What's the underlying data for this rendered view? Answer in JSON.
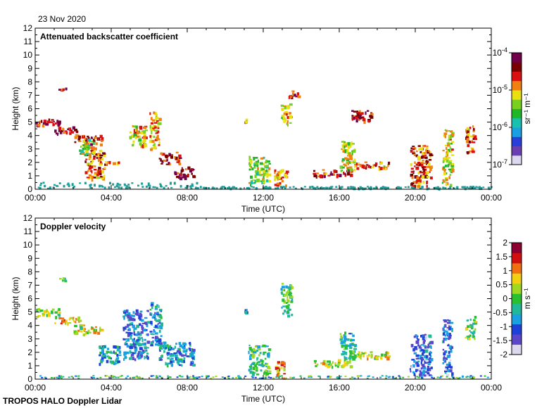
{
  "header": {
    "date": "23 Nov 2020"
  },
  "footer": {
    "instrument": "TROPOS HALO Doppler Lidar"
  },
  "colors": {
    "colormap": [
      "#ddd8ee",
      "#6a3fb0",
      "#2a3fd8",
      "#1a9fe0",
      "#18c0b0",
      "#20b828",
      "#7ad020",
      "#e8e010",
      "#f08010",
      "#d81010",
      "#780000",
      "#70004a"
    ],
    "ground": "#1e9e9a",
    "velocity": [
      "#ddd8ee",
      "#5a46c8",
      "#1e40d8",
      "#1aa0e0",
      "#20b898",
      "#28c030",
      "#a0d820",
      "#f0d010",
      "#f07010",
      "#d01010",
      "#8a0030"
    ]
  },
  "chart_data": [
    {
      "type": "heatmap",
      "title": "Attenuated backscatter coefficient",
      "xlabel": "Time (UTC)",
      "ylabel": "Height (km)",
      "xlim": [
        0,
        24
      ],
      "ylim": [
        0,
        12
      ],
      "xticks": [
        0,
        4,
        8,
        12,
        16,
        20,
        24
      ],
      "xtick_labels": [
        "00:00",
        "04:00",
        "08:00",
        "12:00",
        "16:00",
        "20:00",
        "00:00"
      ],
      "yticks": [
        0,
        1,
        2,
        3,
        4,
        5,
        6,
        7,
        8,
        9,
        10,
        11,
        12
      ],
      "colorbar": {
        "label": "sr⁻¹ m⁻¹",
        "scale": "log",
        "range": [
          1e-07,
          0.0001
        ],
        "tick_values": [
          1e-07,
          1e-06,
          1e-05,
          0.0001
        ],
        "tick_bases": [
          "10",
          "10",
          "10",
          "10"
        ],
        "tick_exponents": [
          "-7",
          "-6",
          "-5",
          "-4"
        ]
      },
      "features": [
        {
          "t0": 0.0,
          "t1": 1.3,
          "h0": 4.7,
          "h1": 5.3,
          "v": 0.92
        },
        {
          "t0": 1.0,
          "t1": 2.3,
          "h0": 4.2,
          "h1": 4.7,
          "v": 0.9
        },
        {
          "t0": 2.0,
          "t1": 3.5,
          "h0": 3.4,
          "h1": 4.1,
          "v": 0.85
        },
        {
          "t0": 3.3,
          "t1": 4.4,
          "h0": 1.9,
          "h1": 2.2,
          "v": 0.8
        },
        {
          "t0": 2.6,
          "t1": 3.6,
          "h0": 0.8,
          "h1": 3.2,
          "v": 0.75
        },
        {
          "t0": 4.9,
          "t1": 5.8,
          "h0": 3.2,
          "h1": 4.8,
          "v": 0.65
        },
        {
          "t0": 6.0,
          "t1": 6.5,
          "h0": 3.0,
          "h1": 5.8,
          "v": 0.7
        },
        {
          "t0": 6.5,
          "t1": 7.6,
          "h0": 1.9,
          "h1": 2.8,
          "v": 0.85
        },
        {
          "t0": 7.3,
          "t1": 8.3,
          "h0": 0.9,
          "h1": 1.7,
          "v": 0.9
        },
        {
          "t0": 1.2,
          "t1": 1.6,
          "h0": 7.3,
          "h1": 7.6,
          "v": 0.88
        },
        {
          "t0": 11.2,
          "t1": 12.3,
          "h0": 0.4,
          "h1": 2.5,
          "v": 0.55
        },
        {
          "t0": 12.5,
          "t1": 13.2,
          "h0": 0.2,
          "h1": 1.5,
          "v": 0.7
        },
        {
          "t0": 12.9,
          "t1": 13.4,
          "h0": 4.8,
          "h1": 6.4,
          "v": 0.65
        },
        {
          "t0": 13.3,
          "t1": 13.9,
          "h0": 6.9,
          "h1": 7.4,
          "v": 0.88
        },
        {
          "t0": 11.0,
          "t1": 11.1,
          "h0": 5.0,
          "h1": 5.3,
          "v": 0.7
        },
        {
          "t0": 14.6,
          "t1": 16.6,
          "h0": 1.0,
          "h1": 1.5,
          "v": 0.85
        },
        {
          "t0": 16.0,
          "t1": 16.8,
          "h0": 1.4,
          "h1": 3.6,
          "v": 0.6
        },
        {
          "t0": 16.8,
          "t1": 18.6,
          "h0": 1.6,
          "h1": 2.1,
          "v": 0.75
        },
        {
          "t0": 16.6,
          "t1": 17.7,
          "h0": 5.1,
          "h1": 5.9,
          "v": 0.88
        },
        {
          "t0": 19.7,
          "t1": 20.8,
          "h0": 0.3,
          "h1": 3.3,
          "v": 0.78
        },
        {
          "t0": 21.4,
          "t1": 21.9,
          "h0": 0.3,
          "h1": 4.5,
          "v": 0.62
        },
        {
          "t0": 22.6,
          "t1": 23.1,
          "h0": 2.8,
          "h1": 4.8,
          "v": 0.75
        },
        {
          "t0": 2.3,
          "t1": 3.1,
          "h0": 2.6,
          "h1": 3.8,
          "v": 0.55
        }
      ]
    },
    {
      "type": "heatmap",
      "title": "Doppler velocity",
      "xlabel": "Time (UTC)",
      "ylabel": "Height (km)",
      "xlim": [
        0,
        24
      ],
      "ylim": [
        0,
        12
      ],
      "xticks": [
        0,
        4,
        8,
        12,
        16,
        20,
        24
      ],
      "xtick_labels": [
        "00:00",
        "04:00",
        "08:00",
        "12:00",
        "16:00",
        "20:00",
        "00:00"
      ],
      "yticks": [
        0,
        1,
        2,
        3,
        4,
        5,
        6,
        7,
        8,
        9,
        10,
        11,
        12
      ],
      "colorbar": {
        "label": "m s⁻¹",
        "scale": "linear",
        "range": [
          -2,
          2
        ],
        "tick_values": [
          -2,
          -1.5,
          -1,
          -0.5,
          0,
          0.5,
          1,
          1.5,
          2
        ],
        "tick_labels": [
          "-2",
          "-1.5",
          "-1",
          "-0.5",
          "0",
          "0.5",
          "1",
          "1.5",
          "2"
        ]
      },
      "features": [
        {
          "t0": 0.0,
          "t1": 1.3,
          "h0": 4.7,
          "h1": 5.3,
          "v": 0.55
        },
        {
          "t0": 1.0,
          "t1": 2.3,
          "h0": 4.2,
          "h1": 4.7,
          "v": 0.72
        },
        {
          "t0": 2.0,
          "t1": 3.5,
          "h0": 3.4,
          "h1": 4.1,
          "v": 0.62
        },
        {
          "t0": 3.3,
          "t1": 4.4,
          "h0": 1.2,
          "h1": 2.6,
          "v": 0.35
        },
        {
          "t0": 4.6,
          "t1": 5.9,
          "h0": 1.5,
          "h1": 5.2,
          "v": 0.25
        },
        {
          "t0": 6.0,
          "t1": 6.6,
          "h0": 2.5,
          "h1": 5.8,
          "v": 0.3
        },
        {
          "t0": 6.5,
          "t1": 8.3,
          "h0": 1.1,
          "h1": 2.8,
          "v": 0.3
        },
        {
          "t0": 1.2,
          "t1": 1.6,
          "h0": 7.3,
          "h1": 7.6,
          "v": 0.55
        },
        {
          "t0": 11.2,
          "t1": 12.3,
          "h0": 0.4,
          "h1": 2.6,
          "v": 0.45
        },
        {
          "t0": 12.6,
          "t1": 13.1,
          "h0": 0.1,
          "h1": 1.4,
          "v": 0.8
        },
        {
          "t0": 12.9,
          "t1": 13.5,
          "h0": 4.8,
          "h1": 7.2,
          "v": 0.45
        },
        {
          "t0": 14.6,
          "t1": 16.6,
          "h0": 1.0,
          "h1": 1.5,
          "v": 0.6
        },
        {
          "t0": 16.0,
          "t1": 16.8,
          "h0": 1.5,
          "h1": 3.6,
          "v": 0.4
        },
        {
          "t0": 16.8,
          "t1": 18.6,
          "h0": 1.6,
          "h1": 2.1,
          "v": 0.65
        },
        {
          "t0": 19.7,
          "t1": 20.8,
          "h0": 0.3,
          "h1": 3.4,
          "v": 0.2
        },
        {
          "t0": 21.4,
          "t1": 21.9,
          "h0": 0.3,
          "h1": 4.6,
          "v": 0.2
        },
        {
          "t0": 22.6,
          "t1": 23.1,
          "h0": 3.0,
          "h1": 4.8,
          "v": 0.5
        },
        {
          "t0": 11.0,
          "t1": 11.1,
          "h0": 5.0,
          "h1": 5.3,
          "v": 0.25
        }
      ]
    }
  ]
}
